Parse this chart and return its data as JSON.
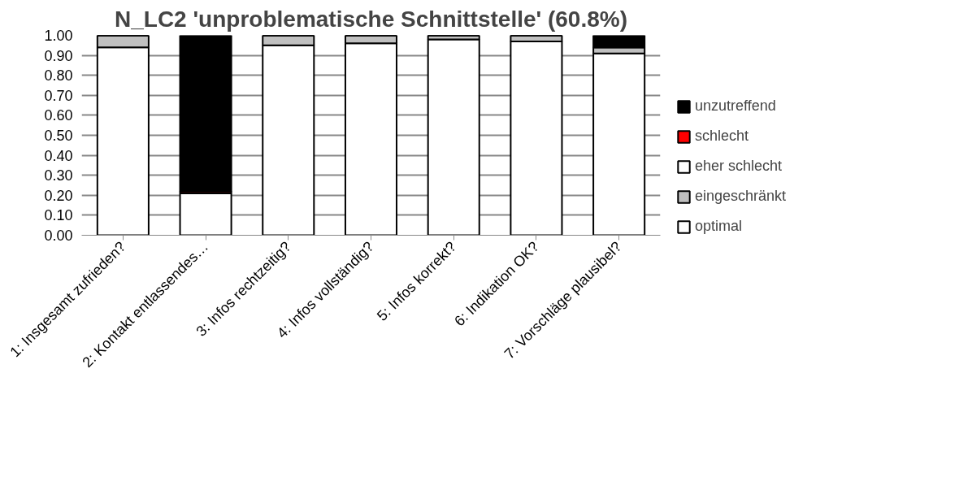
{
  "chart_data": {
    "type": "bar",
    "title": "N_LC2 'unproblematische Schnittstelle' (60.8%)",
    "stacked": true,
    "categories": [
      "1: Insgesamt zufrieden?",
      "2: Kontakt entlassendes…",
      "3: Infos rechtzeitig?",
      "4: Infos vollständig?",
      "5: Infos korrekt?",
      "6: Indikation OK?",
      "7: Vorschläge plausibel?"
    ],
    "series": [
      {
        "name": "optimal",
        "color": "#ffffff",
        "values": [
          0.94,
          0.21,
          0.95,
          0.96,
          0.98,
          0.97,
          0.91
        ]
      },
      {
        "name": "eingeschränkt",
        "color": "#c0c0c0",
        "values": [
          0.06,
          0,
          0.05,
          0.04,
          0.02,
          0.03,
          0.03
        ]
      },
      {
        "name": "eher schlecht",
        "color": "#ffffff",
        "values": [
          0,
          0,
          0,
          0,
          0,
          0,
          0
        ]
      },
      {
        "name": "schlecht",
        "color": "#ff0000",
        "values": [
          0,
          0.01,
          0,
          0,
          0,
          0,
          0
        ]
      },
      {
        "name": "unzutreffend",
        "color": "#000000",
        "values": [
          0,
          0.78,
          0,
          0,
          0,
          0,
          0.06
        ]
      }
    ],
    "ylim": [
      0,
      1
    ],
    "yticks": [
      {
        "value": 0,
        "label": "0.00"
      },
      {
        "value": 0.1,
        "label": "0.10"
      },
      {
        "value": 0.2,
        "label": "0.20"
      },
      {
        "value": 0.3,
        "label": "0.30"
      },
      {
        "value": 0.4,
        "label": "0.40"
      },
      {
        "value": 0.5,
        "label": "0.50"
      },
      {
        "value": 0.6,
        "label": "0.60"
      },
      {
        "value": 0.7,
        "label": "0.70"
      },
      {
        "value": 0.8,
        "label": "0.80"
      },
      {
        "value": 0.9,
        "label": "0.90"
      },
      {
        "value": 1,
        "label": "1.00"
      }
    ],
    "grid": "y",
    "legend": "right"
  }
}
